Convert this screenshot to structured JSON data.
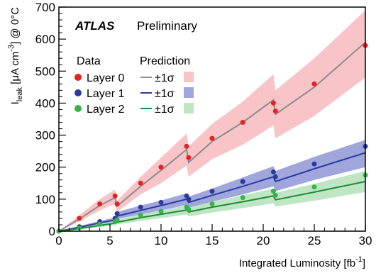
{
  "chart_data": {
    "type": "line",
    "experiment": "ATLAS",
    "status": "Preliminary",
    "xlabel_main": "Integrated Luminosity [fb",
    "xlabel_sup": "-1",
    "xlabel_close": "]",
    "ylabel_main": "I",
    "ylabel_sub": "leak",
    "ylabel_mid": " [μA cm",
    "ylabel_sup": "-3",
    "ylabel_end": "] @ 0°C",
    "xlim": [
      0,
      30
    ],
    "ylim": [
      0,
      700
    ],
    "x_ticks": [
      "0",
      "5",
      "10",
      "15",
      "20",
      "25",
      "30"
    ],
    "y_ticks": [
      "0",
      "100",
      "200",
      "300",
      "400",
      "500",
      "600",
      "700"
    ],
    "legend_header_data": "Data",
    "legend_header_prediction": "Prediction",
    "legend_sigma_label": "±1σ",
    "series": [
      {
        "name": "Layer 0",
        "data_color": "#e8201e",
        "pred_color": "#8c8c8c",
        "band_color": "#f8c4c8",
        "x": [
          0,
          2,
          4,
          5.5,
          5.7,
          8,
          10,
          12.5,
          12.7,
          15,
          18,
          21,
          21.2,
          25,
          30
        ],
        "data": [
          0,
          40,
          85,
          110,
          85,
          150,
          200,
          265,
          230,
          290,
          340,
          400,
          375,
          460,
          580
        ],
        "pred": [
          0,
          38,
          80,
          105,
          78,
          140,
          190,
          255,
          215,
          280,
          340,
          410,
          365,
          450,
          590
        ],
        "band_low": [
          0,
          30,
          65,
          85,
          60,
          115,
          150,
          205,
          170,
          225,
          270,
          330,
          290,
          360,
          480
        ],
        "band_high": [
          0,
          50,
          100,
          130,
          95,
          170,
          230,
          305,
          265,
          335,
          405,
          490,
          440,
          540,
          690
        ]
      },
      {
        "name": "Layer 1",
        "data_color": "#2c3a9e",
        "pred_color": "#2c3a9e",
        "band_color": "#9ea6dc",
        "x": [
          0,
          2,
          4,
          5.5,
          5.7,
          8,
          10,
          12.5,
          12.7,
          15,
          18,
          21,
          21.2,
          25,
          30
        ],
        "data": [
          0,
          14,
          30,
          40,
          55,
          75,
          90,
          110,
          100,
          125,
          155,
          185,
          170,
          210,
          265
        ],
        "pred": [
          0,
          12,
          26,
          35,
          47,
          65,
          80,
          100,
          90,
          112,
          140,
          170,
          155,
          195,
          245
        ],
        "band_low": [
          0,
          9,
          20,
          27,
          38,
          52,
          65,
          82,
          72,
          92,
          115,
          140,
          125,
          160,
          200
        ],
        "band_high": [
          0,
          16,
          32,
          43,
          60,
          80,
          96,
          118,
          108,
          133,
          168,
          203,
          188,
          232,
          285
        ]
      },
      {
        "name": "Layer 2",
        "data_color": "#35b44a",
        "pred_color": "#1f8a34",
        "band_color": "#bfe6c4",
        "x": [
          0,
          2,
          4,
          5.5,
          5.7,
          8,
          10,
          12.5,
          12.7,
          15,
          18,
          21,
          21.2,
          25,
          30
        ],
        "data": [
          0,
          10,
          22,
          30,
          35,
          50,
          62,
          75,
          68,
          85,
          105,
          125,
          112,
          138,
          175
        ],
        "pred": [
          0,
          8,
          18,
          25,
          28,
          42,
          53,
          66,
          60,
          75,
          92,
          110,
          98,
          122,
          155
        ],
        "band_low": [
          0,
          6,
          13,
          18,
          21,
          32,
          41,
          52,
          46,
          58,
          72,
          87,
          77,
          95,
          122
        ],
        "band_high": [
          0,
          11,
          23,
          31,
          36,
          52,
          65,
          80,
          74,
          92,
          112,
          133,
          120,
          148,
          188
        ]
      }
    ],
    "legend_placement": "top-left",
    "grid": false
  }
}
